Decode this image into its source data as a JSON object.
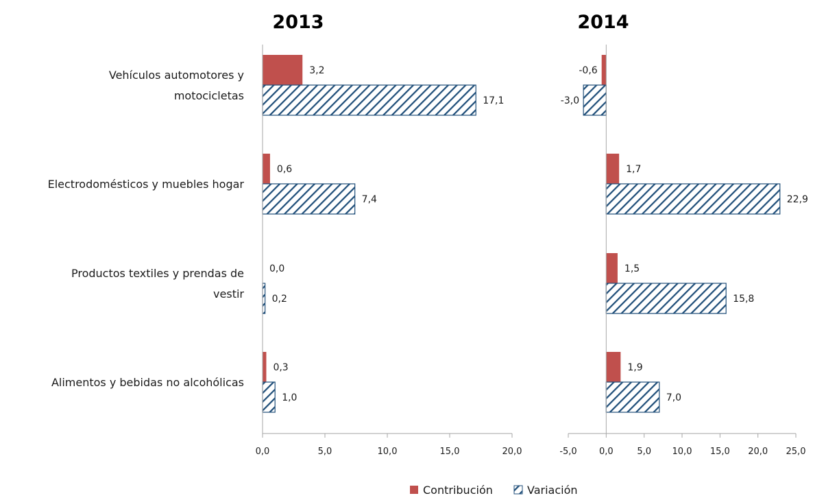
{
  "colors": {
    "contribucion": "#c0504d",
    "variacion": "#1f4e79",
    "axis": "#a6a6a6"
  },
  "legend": [
    {
      "key": "contribucion",
      "label": "Contribución",
      "style": "solid"
    },
    {
      "key": "variacion",
      "label": "Variación",
      "style": "hatched"
    }
  ],
  "chart_data": [
    {
      "type": "bar",
      "orientation": "horizontal",
      "title": "2013",
      "categories": [
        [
          "Vehículos automotores y",
          "motocicletas"
        ],
        [
          "Electrodomésticos y muebles hogar"
        ],
        [
          "Productos textiles y prendas de",
          "vestir"
        ],
        [
          "Alimentos y bebidas no alcohólicas"
        ]
      ],
      "series": [
        {
          "name": "Contribución",
          "values": [
            3.2,
            0.6,
            0.0,
            0.3
          ],
          "labels": [
            "3,2",
            "0,6",
            "0,0",
            "0,3"
          ]
        },
        {
          "name": "Variación",
          "values": [
            17.1,
            7.4,
            0.2,
            1.0
          ],
          "labels": [
            "17,1",
            "7,4",
            "0,2",
            "1,0"
          ]
        }
      ],
      "xlim": [
        0,
        20
      ],
      "xticks": [
        0,
        5,
        10,
        15,
        20
      ],
      "xtick_labels": [
        "0,0",
        "5,0",
        "10,0",
        "15,0",
        "20,0"
      ],
      "grid": false,
      "legend_position": "bottom"
    },
    {
      "type": "bar",
      "orientation": "horizontal",
      "title": "2014",
      "categories": [
        [
          "Vehículos automotores y",
          "motocicletas"
        ],
        [
          "Electrodomésticos y muebles hogar"
        ],
        [
          "Productos textiles y prendas de",
          "vestir"
        ],
        [
          "Alimentos y bebidas no alcohólicas"
        ]
      ],
      "series": [
        {
          "name": "Contribución",
          "values": [
            -0.6,
            1.7,
            1.5,
            1.9
          ],
          "labels": [
            "-0,6",
            "1,7",
            "1,5",
            "1,9"
          ]
        },
        {
          "name": "Variación",
          "values": [
            -3.0,
            22.9,
            15.8,
            7.0
          ],
          "labels": [
            "-3,0",
            "22,9",
            "15,8",
            "7,0"
          ]
        }
      ],
      "xlim": [
        -5,
        25
      ],
      "xticks": [
        -5,
        0,
        5,
        10,
        15,
        20,
        25
      ],
      "xtick_labels": [
        "-5,0",
        "0,0",
        "5,0",
        "10,0",
        "15,0",
        "20,0",
        "25,0"
      ],
      "grid": false,
      "legend_position": "bottom"
    }
  ]
}
